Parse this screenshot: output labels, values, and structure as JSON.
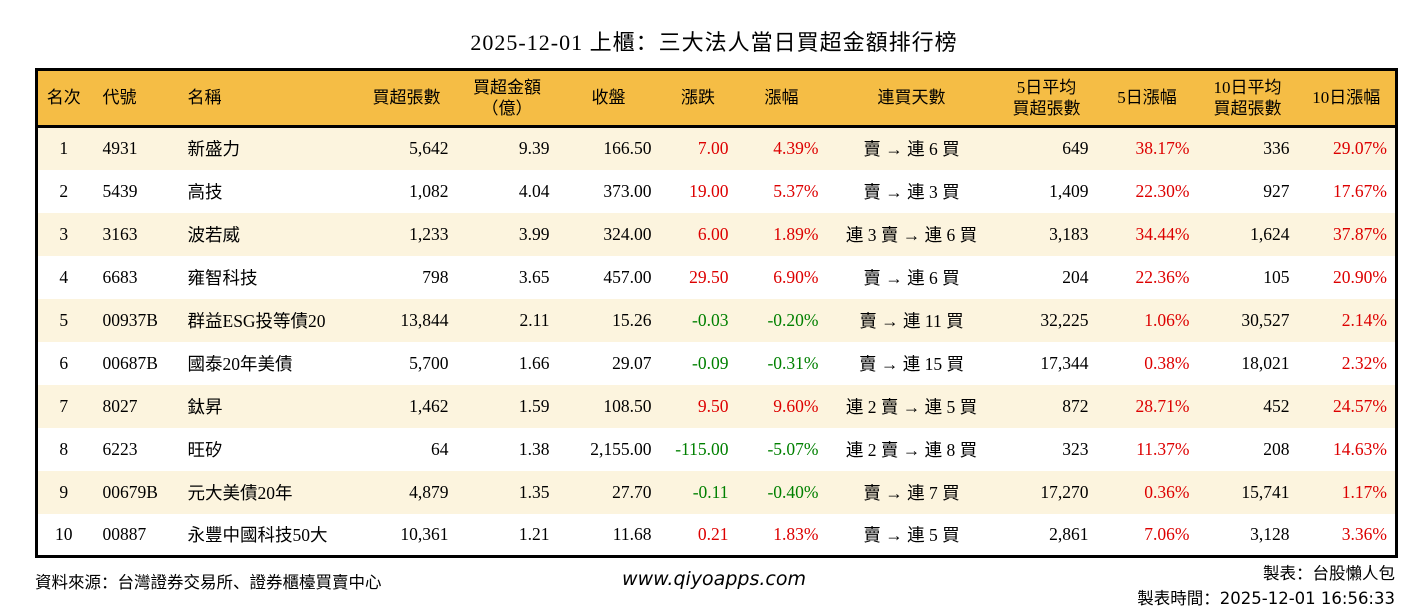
{
  "title": "2025-12-01 上櫃：三大法人當日買超金額排行榜",
  "chart_data": {
    "type": "table",
    "title": "2025-12-01 上櫃：三大法人當日買超金額排行榜",
    "columns": [
      "名次",
      "代號",
      "名稱",
      "買超張數",
      "買超金額\n（億）",
      "收盤",
      "漲跌",
      "漲幅",
      "連買天數",
      "5日平均\n買超張數",
      "5日漲幅",
      "10日平均\n買超張數",
      "10日漲幅"
    ],
    "rows": [
      [
        "1",
        "4931",
        "新盛力",
        "5,642",
        "9.39",
        "166.50",
        "7.00",
        "4.39%",
        "賣 → 連 6 買",
        "649",
        "38.17%",
        "336",
        "29.07%"
      ],
      [
        "2",
        "5439",
        "高技",
        "1,082",
        "4.04",
        "373.00",
        "19.00",
        "5.37%",
        "賣 → 連 3 買",
        "1,409",
        "22.30%",
        "927",
        "17.67%"
      ],
      [
        "3",
        "3163",
        "波若威",
        "1,233",
        "3.99",
        "324.00",
        "6.00",
        "1.89%",
        "連 3 賣 → 連 6 買",
        "3,183",
        "34.44%",
        "1,624",
        "37.87%"
      ],
      [
        "4",
        "6683",
        "雍智科技",
        "798",
        "3.65",
        "457.00",
        "29.50",
        "6.90%",
        "賣 → 連 6 買",
        "204",
        "22.36%",
        "105",
        "20.90%"
      ],
      [
        "5",
        "00937B",
        "群益ESG投等債20",
        "13,844",
        "2.11",
        "15.26",
        "-0.03",
        "-0.20%",
        "賣 → 連 11 買",
        "32,225",
        "1.06%",
        "30,527",
        "2.14%"
      ],
      [
        "6",
        "00687B",
        "國泰20年美債",
        "5,700",
        "1.66",
        "29.07",
        "-0.09",
        "-0.31%",
        "賣 → 連 15 買",
        "17,344",
        "0.38%",
        "18,021",
        "2.32%"
      ],
      [
        "7",
        "8027",
        "鈦昇",
        "1,462",
        "1.59",
        "108.50",
        "9.50",
        "9.60%",
        "連 2 賣 → 連 5 買",
        "872",
        "28.71%",
        "452",
        "24.57%"
      ],
      [
        "8",
        "6223",
        "旺矽",
        "64",
        "1.38",
        "2,155.00",
        "-115.00",
        "-5.07%",
        "連 2 賣 → 連 8 買",
        "323",
        "11.37%",
        "208",
        "14.63%"
      ],
      [
        "9",
        "00679B",
        "元大美債20年",
        "4,879",
        "1.35",
        "27.70",
        "-0.11",
        "-0.40%",
        "賣 → 連 7 買",
        "17,270",
        "0.36%",
        "15,741",
        "1.17%"
      ],
      [
        "10",
        "00887",
        "永豐中國科技50大",
        "10,361",
        "1.21",
        "11.68",
        "0.21",
        "1.83%",
        "賣 → 連 5 買",
        "2,861",
        "7.06%",
        "3,128",
        "3.36%"
      ]
    ],
    "sign_colored_column_indices": [
      6,
      7,
      10,
      12
    ],
    "layout_hints": {
      "grid": "off",
      "row_striping": "odd rows cream",
      "header_fill": "gold"
    }
  },
  "colors": {
    "header_bg": "#F5BD45",
    "row_alt_bg": "#FCF4DE",
    "up_red": "#DD0000",
    "down_green": "#008000",
    "border": "#000000"
  },
  "footer": {
    "source": "資料來源：台灣證券交易所、證券櫃檯買賣中心",
    "website": "www.qiyoapps.com",
    "maker": "製表：台股懶人包",
    "made_at": "製表時間：2025-12-01 16:56:33"
  }
}
